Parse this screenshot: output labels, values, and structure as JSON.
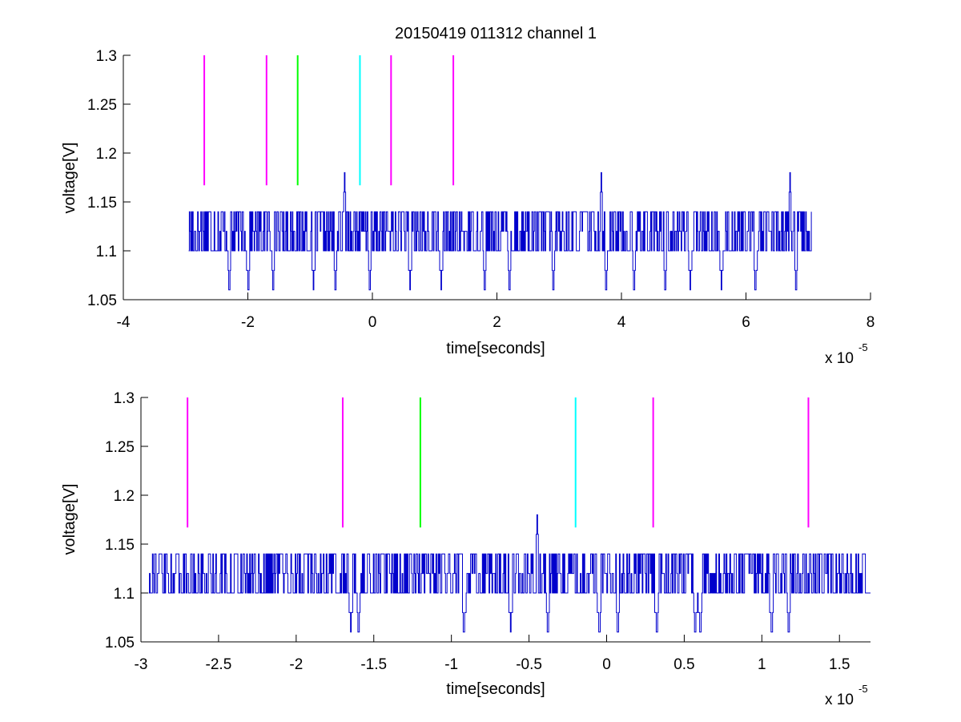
{
  "chart_data": [
    {
      "type": "line",
      "title": "20150419 011312 channel 1",
      "xlabel": "time[seconds]",
      "ylabel": "voltage[V]",
      "x_multiplier": "x 10",
      "x_multiplier_exponent": "-5",
      "xlim": [
        -4,
        8
      ],
      "ylim": [
        1.05,
        1.3
      ],
      "x_ticks": [
        -4,
        -2,
        0,
        2,
        4,
        6,
        8
      ],
      "x_tick_labels": [
        "-4",
        "-2",
        "0",
        "2",
        "4",
        "6",
        "8"
      ],
      "y_ticks": [
        1.05,
        1.1,
        1.15,
        1.2,
        1.25,
        1.3
      ],
      "y_tick_labels": [
        "1.05",
        "1.1",
        "1.15",
        "1.2",
        "1.25",
        "1.3"
      ],
      "grid": false,
      "markers": [
        {
          "x": -2.7,
          "color": "#ff00ff"
        },
        {
          "x": -1.7,
          "color": "#ff00ff"
        },
        {
          "x": -1.2,
          "color": "#00ff00"
        },
        {
          "x": -0.2,
          "color": "#00ffff"
        },
        {
          "x": 0.3,
          "color": "#ff00ff"
        },
        {
          "x": 1.3,
          "color": "#ff00ff"
        }
      ],
      "marker_range": [
        1.167,
        1.3
      ],
      "series": [
        {
          "color": "#0000cc",
          "x_range": [
            -2.95,
            7.05
          ],
          "levels": [
            1.1,
            1.12,
            1.14
          ],
          "peaks": [
            {
              "x": -0.45,
              "y": 1.18
            },
            {
              "x": 3.67,
              "y": 1.18
            },
            {
              "x": 6.7,
              "y": 1.18
            }
          ],
          "dips": [
            -2.3,
            -2.0,
            -1.6,
            -0.95,
            -0.6,
            -0.05,
            0.6,
            1.1,
            1.8,
            2.2,
            2.9,
            3.75,
            4.2,
            4.7,
            5.1,
            5.6,
            6.15,
            6.8
          ]
        }
      ]
    },
    {
      "type": "line",
      "xlabel": "time[seconds]",
      "ylabel": "voltage[V]",
      "x_multiplier": "x 10",
      "x_multiplier_exponent": "-5",
      "xlim": [
        -3.0,
        1.7
      ],
      "ylim": [
        1.05,
        1.3
      ],
      "x_ticks": [
        -3,
        -2.5,
        -2,
        -1.5,
        -1,
        -0.5,
        0,
        0.5,
        1,
        1.5
      ],
      "x_tick_labels": [
        "-3",
        "-2.5",
        "-2",
        "-1.5",
        "-1",
        "-0.5",
        "0",
        "0.5",
        "1",
        "1.5"
      ],
      "y_ticks": [
        1.05,
        1.1,
        1.15,
        1.2,
        1.25,
        1.3
      ],
      "y_tick_labels": [
        "1.05",
        "1.1",
        "1.15",
        "1.2",
        "1.25",
        "1.3"
      ],
      "grid": false,
      "markers": [
        {
          "x": -2.7,
          "color": "#ff00ff"
        },
        {
          "x": -1.7,
          "color": "#ff00ff"
        },
        {
          "x": -1.2,
          "color": "#00ff00"
        },
        {
          "x": -0.2,
          "color": "#00ffff"
        },
        {
          "x": 0.3,
          "color": "#ff00ff"
        },
        {
          "x": 1.3,
          "color": "#ff00ff"
        }
      ],
      "marker_range": [
        1.167,
        1.3
      ],
      "series": [
        {
          "color": "#0000cc",
          "x_range": [
            -2.95,
            1.7
          ],
          "levels": [
            1.1,
            1.12,
            1.14
          ],
          "peaks": [
            {
              "x": -0.45,
              "y": 1.18
            }
          ],
          "dips": [
            -1.65,
            -1.6,
            -1.6,
            -0.92,
            -0.62,
            -0.38,
            -0.05,
            0.07,
            0.32,
            0.57,
            0.6,
            1.06,
            1.17
          ]
        }
      ]
    }
  ]
}
